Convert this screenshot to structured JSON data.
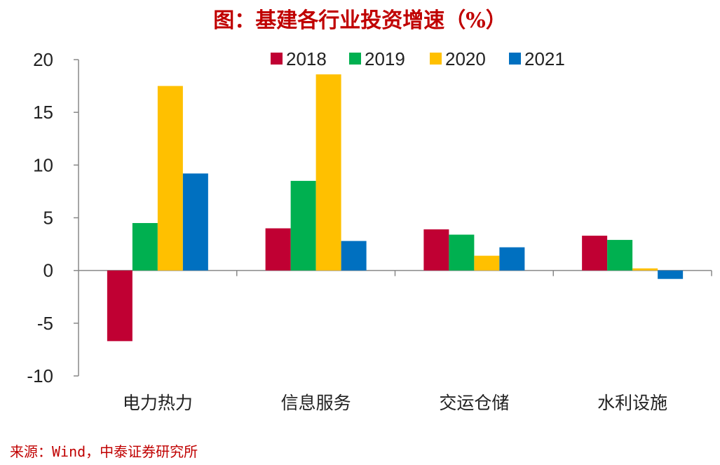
{
  "title": "图：基建各行业投资增速（%）",
  "source": "来源：Wind，中泰证券研究所",
  "colors": {
    "title": "#c00000",
    "s2018": "#c00033",
    "s2019": "#00b050",
    "s2020": "#ffc000",
    "s2021": "#0070c0"
  },
  "chart_data": {
    "type": "bar",
    "title": "图：基建各行业投资增速（%）",
    "categories": [
      "电力热力",
      "信息服务",
      "交运仓储",
      "水利设施"
    ],
    "series": [
      {
        "name": "2018",
        "values": [
          -6.7,
          4.0,
          3.9,
          3.3
        ]
      },
      {
        "name": "2019",
        "values": [
          4.5,
          8.5,
          3.4,
          2.9
        ]
      },
      {
        "name": "2020",
        "values": [
          17.5,
          18.6,
          1.4,
          0.2
        ]
      },
      {
        "name": "2021",
        "values": [
          9.2,
          2.8,
          2.2,
          -0.8
        ]
      }
    ],
    "ylim": [
      -10,
      20
    ],
    "yticks": [
      -10,
      -5,
      0,
      5,
      10,
      15,
      20
    ],
    "legend": "top-center",
    "grid": false
  }
}
